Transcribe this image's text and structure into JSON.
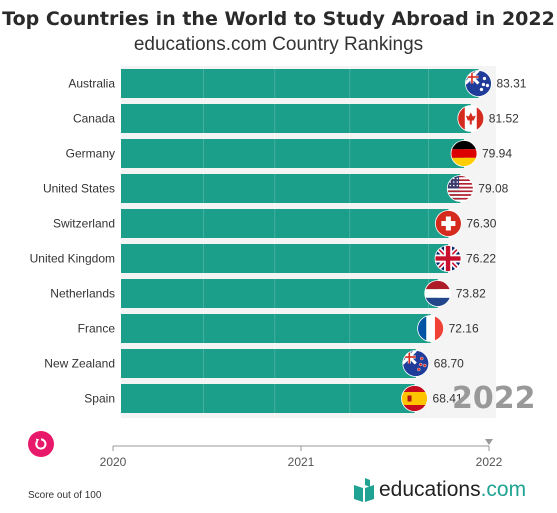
{
  "header": {
    "title": "Top Countries in the World to Study Abroad in 2022",
    "subtitle": "educations.com Country Rankings"
  },
  "colors": {
    "bar": "#1b9e8a",
    "accent": "#e8196a",
    "brand": "#20a393",
    "year": "#999999"
  },
  "chart_data": {
    "type": "bar",
    "orientation": "horizontal",
    "categories": [
      "Australia",
      "Canada",
      "Germany",
      "United States",
      "Switzerland",
      "United Kingdom",
      "Netherlands",
      "France",
      "New Zealand",
      "Spain"
    ],
    "values": [
      83.31,
      81.52,
      79.94,
      79.08,
      76.3,
      76.22,
      73.82,
      72.16,
      68.7,
      68.41
    ],
    "value_labels": [
      "83.31",
      "81.52",
      "79.94",
      "79.08",
      "76.30",
      "76.22",
      "73.82",
      "72.16",
      "68.70",
      "68.41"
    ],
    "flag_icons": [
      "australia-flag-icon",
      "canada-flag-icon",
      "germany-flag-icon",
      "united-states-flag-icon",
      "switzerland-flag-icon",
      "united-kingdom-flag-icon",
      "netherlands-flag-icon",
      "france-flag-icon",
      "new-zealand-flag-icon",
      "spain-flag-icon"
    ],
    "xlim": [
      0,
      86
    ],
    "grid": true,
    "timeline": {
      "ticks": [
        "2020",
        "2021",
        "2022"
      ],
      "current": "2022"
    }
  },
  "controls": {
    "replay_icon": "replay-icon"
  },
  "footer": {
    "note": "Score out of 100",
    "logo_name": "educations",
    "logo_tld": ".com"
  }
}
